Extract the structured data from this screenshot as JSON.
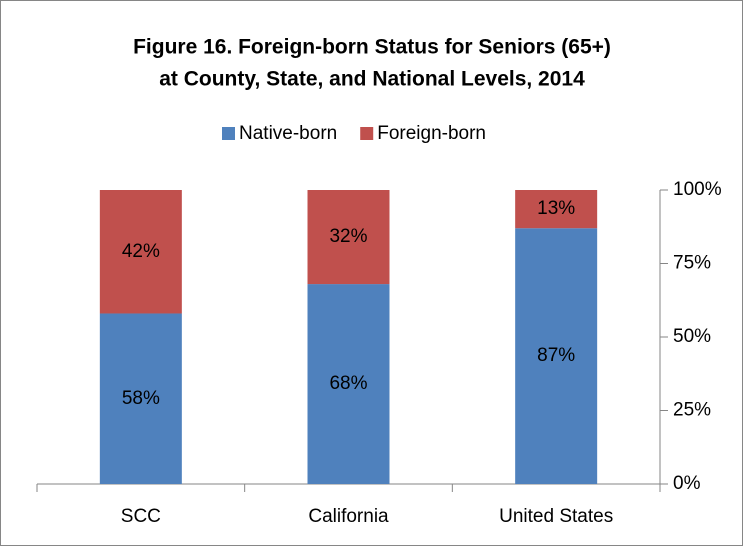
{
  "chart_data": {
    "type": "stacked_bar",
    "title": [
      "Figure 16. Foreign-born Status for Seniors (65+)",
      "at County, State, and National Levels, 2014"
    ],
    "categories": [
      "SCC",
      "California",
      "United States"
    ],
    "series": [
      {
        "name": "Native-born",
        "color": "#4f81bd",
        "values": [
          58,
          68,
          87
        ],
        "value_labels": [
          "58%",
          "68%",
          "87%"
        ]
      },
      {
        "name": "Foreign-born",
        "color": "#c0504d",
        "values": [
          42,
          32,
          13
        ],
        "value_labels": [
          "42%",
          "32%",
          "13%"
        ]
      }
    ],
    "ylim": [
      0,
      100
    ],
    "yticks": [
      {
        "value": 0,
        "label": "0%"
      },
      {
        "value": 25,
        "label": "25%"
      },
      {
        "value": 50,
        "label": "50%"
      },
      {
        "value": 75,
        "label": "75%"
      },
      {
        "value": 100,
        "label": "100%"
      }
    ],
    "legend": "top"
  }
}
